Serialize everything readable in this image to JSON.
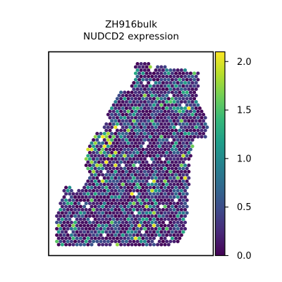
{
  "chart_data": {
    "type": "scatter",
    "subtype": "spatial-hexbin",
    "title_line1": "ZH916bulk",
    "title_line2": "NUDCD2 expression",
    "xlabel": "",
    "ylabel": "",
    "axis_ticks_visible": false,
    "grid": false,
    "colormap": "viridis",
    "colorbar": {
      "position": "right",
      "min": 0.0,
      "max": 2.1,
      "ticks": [
        "0.0",
        "0.5",
        "1.0",
        "1.5",
        "2.0"
      ],
      "tick_values": [
        0.0,
        0.5,
        1.0,
        1.5,
        2.0
      ]
    },
    "spot_value_distribution": {
      "mostly": "low (0.0–0.5, dark purple)",
      "scattered_mid": "0.5–1.2 (blue/teal)",
      "rare_high": "1.5–2.1 (yellow), concentrated along upper-left edge and right edge"
    }
  },
  "colors": {
    "viridis": [
      "#440154",
      "#482878",
      "#3e4989",
      "#31688e",
      "#26828e",
      "#1f9e89",
      "#35b779",
      "#6ece58",
      "#b5de2b",
      "#fde725"
    ],
    "axes": "#000000",
    "background": "#ffffff"
  }
}
